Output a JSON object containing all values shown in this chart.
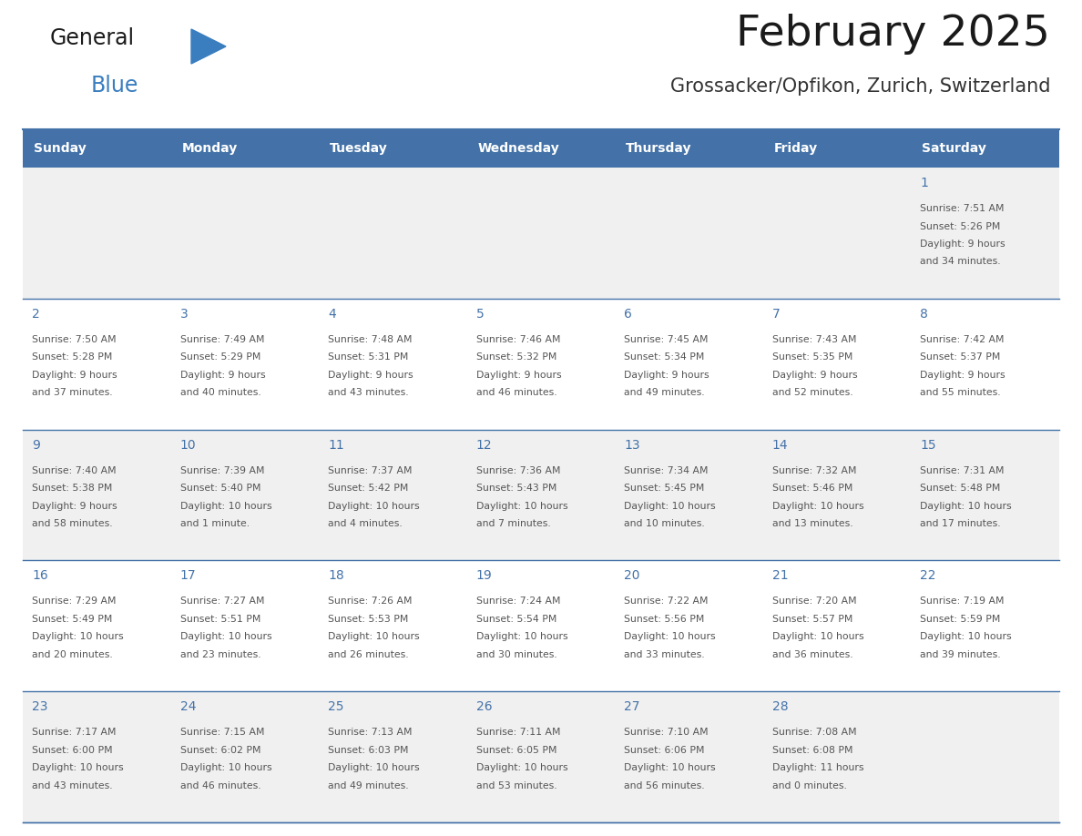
{
  "title": "February 2025",
  "subtitle": "Grossacker/Opfikon, Zurich, Switzerland",
  "days_of_week": [
    "Sunday",
    "Monday",
    "Tuesday",
    "Wednesday",
    "Thursday",
    "Friday",
    "Saturday"
  ],
  "header_bg": "#4472a8",
  "header_text": "#ffffff",
  "cell_bg_row0": "#f0f0f0",
  "cell_bg_odd": "#ffffff",
  "cell_bg_even": "#f0f0f0",
  "row_separator": "#4472a8",
  "day_number_color": "#4472a8",
  "text_color": "#555555",
  "title_color": "#1a1a1a",
  "subtitle_color": "#333333",
  "logo_general_color": "#1a1a1a",
  "logo_blue_color": "#3a7ebf",
  "calendar_data": [
    {
      "day": 1,
      "col": 6,
      "row": 0,
      "sunrise": "7:51 AM",
      "sunset": "5:26 PM",
      "daylight": "9 hours and 34 minutes."
    },
    {
      "day": 2,
      "col": 0,
      "row": 1,
      "sunrise": "7:50 AM",
      "sunset": "5:28 PM",
      "daylight": "9 hours and 37 minutes."
    },
    {
      "day": 3,
      "col": 1,
      "row": 1,
      "sunrise": "7:49 AM",
      "sunset": "5:29 PM",
      "daylight": "9 hours and 40 minutes."
    },
    {
      "day": 4,
      "col": 2,
      "row": 1,
      "sunrise": "7:48 AM",
      "sunset": "5:31 PM",
      "daylight": "9 hours and 43 minutes."
    },
    {
      "day": 5,
      "col": 3,
      "row": 1,
      "sunrise": "7:46 AM",
      "sunset": "5:32 PM",
      "daylight": "9 hours and 46 minutes."
    },
    {
      "day": 6,
      "col": 4,
      "row": 1,
      "sunrise": "7:45 AM",
      "sunset": "5:34 PM",
      "daylight": "9 hours and 49 minutes."
    },
    {
      "day": 7,
      "col": 5,
      "row": 1,
      "sunrise": "7:43 AM",
      "sunset": "5:35 PM",
      "daylight": "9 hours and 52 minutes."
    },
    {
      "day": 8,
      "col": 6,
      "row": 1,
      "sunrise": "7:42 AM",
      "sunset": "5:37 PM",
      "daylight": "9 hours and 55 minutes."
    },
    {
      "day": 9,
      "col": 0,
      "row": 2,
      "sunrise": "7:40 AM",
      "sunset": "5:38 PM",
      "daylight": "9 hours and 58 minutes."
    },
    {
      "day": 10,
      "col": 1,
      "row": 2,
      "sunrise": "7:39 AM",
      "sunset": "5:40 PM",
      "daylight": "10 hours and 1 minute."
    },
    {
      "day": 11,
      "col": 2,
      "row": 2,
      "sunrise": "7:37 AM",
      "sunset": "5:42 PM",
      "daylight": "10 hours and 4 minutes."
    },
    {
      "day": 12,
      "col": 3,
      "row": 2,
      "sunrise": "7:36 AM",
      "sunset": "5:43 PM",
      "daylight": "10 hours and 7 minutes."
    },
    {
      "day": 13,
      "col": 4,
      "row": 2,
      "sunrise": "7:34 AM",
      "sunset": "5:45 PM",
      "daylight": "10 hours and 10 minutes."
    },
    {
      "day": 14,
      "col": 5,
      "row": 2,
      "sunrise": "7:32 AM",
      "sunset": "5:46 PM",
      "daylight": "10 hours and 13 minutes."
    },
    {
      "day": 15,
      "col": 6,
      "row": 2,
      "sunrise": "7:31 AM",
      "sunset": "5:48 PM",
      "daylight": "10 hours and 17 minutes."
    },
    {
      "day": 16,
      "col": 0,
      "row": 3,
      "sunrise": "7:29 AM",
      "sunset": "5:49 PM",
      "daylight": "10 hours and 20 minutes."
    },
    {
      "day": 17,
      "col": 1,
      "row": 3,
      "sunrise": "7:27 AM",
      "sunset": "5:51 PM",
      "daylight": "10 hours and 23 minutes."
    },
    {
      "day": 18,
      "col": 2,
      "row": 3,
      "sunrise": "7:26 AM",
      "sunset": "5:53 PM",
      "daylight": "10 hours and 26 minutes."
    },
    {
      "day": 19,
      "col": 3,
      "row": 3,
      "sunrise": "7:24 AM",
      "sunset": "5:54 PM",
      "daylight": "10 hours and 30 minutes."
    },
    {
      "day": 20,
      "col": 4,
      "row": 3,
      "sunrise": "7:22 AM",
      "sunset": "5:56 PM",
      "daylight": "10 hours and 33 minutes."
    },
    {
      "day": 21,
      "col": 5,
      "row": 3,
      "sunrise": "7:20 AM",
      "sunset": "5:57 PM",
      "daylight": "10 hours and 36 minutes."
    },
    {
      "day": 22,
      "col": 6,
      "row": 3,
      "sunrise": "7:19 AM",
      "sunset": "5:59 PM",
      "daylight": "10 hours and 39 minutes."
    },
    {
      "day": 23,
      "col": 0,
      "row": 4,
      "sunrise": "7:17 AM",
      "sunset": "6:00 PM",
      "daylight": "10 hours and 43 minutes."
    },
    {
      "day": 24,
      "col": 1,
      "row": 4,
      "sunrise": "7:15 AM",
      "sunset": "6:02 PM",
      "daylight": "10 hours and 46 minutes."
    },
    {
      "day": 25,
      "col": 2,
      "row": 4,
      "sunrise": "7:13 AM",
      "sunset": "6:03 PM",
      "daylight": "10 hours and 49 minutes."
    },
    {
      "day": 26,
      "col": 3,
      "row": 4,
      "sunrise": "7:11 AM",
      "sunset": "6:05 PM",
      "daylight": "10 hours and 53 minutes."
    },
    {
      "day": 27,
      "col": 4,
      "row": 4,
      "sunrise": "7:10 AM",
      "sunset": "6:06 PM",
      "daylight": "10 hours and 56 minutes."
    },
    {
      "day": 28,
      "col": 5,
      "row": 4,
      "sunrise": "7:08 AM",
      "sunset": "6:08 PM",
      "daylight": "11 hours and 0 minutes."
    }
  ]
}
